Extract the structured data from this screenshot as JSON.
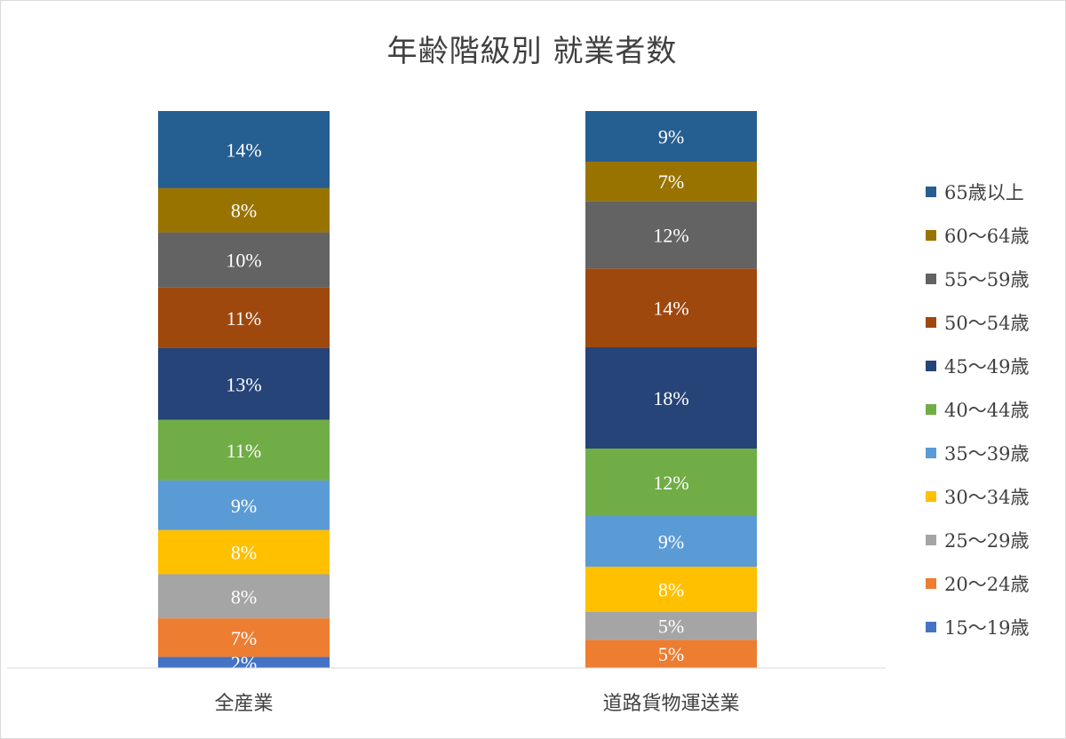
{
  "chart_data": {
    "type": "bar",
    "stacked": true,
    "title": "年齢階級別 就業者数",
    "categories": [
      "全産業",
      "道路貨物運送業"
    ],
    "series": [
      {
        "name": "15〜19歳",
        "color": "#4472c4",
        "values": [
          2,
          0
        ],
        "labels": [
          "2%",
          "0%"
        ]
      },
      {
        "name": "20〜24歳",
        "color": "#ed7d31",
        "values": [
          7,
          5
        ],
        "labels": [
          "7%",
          "5%"
        ]
      },
      {
        "name": "25〜29歳",
        "color": "#a5a5a5",
        "values": [
          8,
          5
        ],
        "labels": [
          "8%",
          "5%"
        ]
      },
      {
        "name": "30〜34歳",
        "color": "#ffc000",
        "values": [
          8,
          8
        ],
        "labels": [
          "8%",
          "8%"
        ]
      },
      {
        "name": "35〜39歳",
        "color": "#5b9bd5",
        "values": [
          9,
          9
        ],
        "labels": [
          "9%",
          "9%"
        ]
      },
      {
        "name": "40〜44歳",
        "color": "#70ad47",
        "values": [
          11,
          12
        ],
        "labels": [
          "11%",
          "12%"
        ]
      },
      {
        "name": "45〜49歳",
        "color": "#264478",
        "values": [
          13,
          18
        ],
        "labels": [
          "13%",
          "18%"
        ]
      },
      {
        "name": "50〜54歳",
        "color": "#9e480e",
        "values": [
          11,
          14
        ],
        "labels": [
          "11%",
          "14%"
        ]
      },
      {
        "name": "55〜59歳",
        "color": "#636363",
        "values": [
          10,
          12
        ],
        "labels": [
          "10%",
          "12%"
        ]
      },
      {
        "name": "60〜64歳",
        "color": "#997300",
        "values": [
          8,
          7
        ],
        "labels": [
          "8%",
          "7%"
        ]
      },
      {
        "name": "65歳以上",
        "color": "#255e91",
        "values": [
          14,
          9
        ],
        "labels": [
          "14%",
          "9%"
        ]
      }
    ],
    "legend_position": "right",
    "grid": false
  }
}
